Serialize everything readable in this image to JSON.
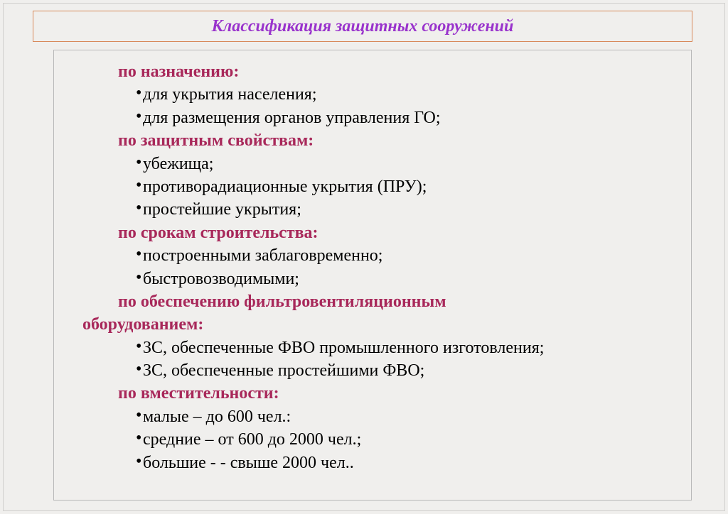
{
  "slide": {
    "title": "Классификация защитных сооружений",
    "background_color": "#f0efed",
    "title_color": "#9933cc",
    "title_border_color": "#d88a5a",
    "header_color": "#a8285a",
    "item_color": "#000000",
    "content_border_color": "#b8b8b8",
    "title_fontsize": 24,
    "header_fontsize": 24,
    "item_fontsize": 24,
    "categories": [
      {
        "header": "по назначению:",
        "items": [
          "для укрытия населения;",
          "для размещения органов управления ГО;"
        ]
      },
      {
        "header": "по защитным свойствам:",
        "items": [
          "убежища;",
          "противорадиационные укрытия (ПРУ);",
          "простейшие укрытия;"
        ]
      },
      {
        "header": "по срокам строительства:",
        "items": [
          " построенными заблаговременно;",
          " быстровозводимыми;"
        ]
      },
      {
        "header": "по обеспечению фильтровентиляционным оборудованием:",
        "wrap": true,
        "items": [
          "ЗС, обеспеченные ФВО промышленного изготовления;",
          "ЗС, обеспеченные простейшими ФВО;"
        ]
      },
      {
        "header": "по вместительности:",
        "items": [
          "малые – до 600 чел.:",
          "средние – от 600 до 2000 чел.;",
          "большие - - свыше 2000 чел.."
        ]
      }
    ]
  },
  "cat0_header": "по назначению:",
  "cat0_item0": "для укрытия населения;",
  "cat0_item1": "для размещения органов управления ГО;",
  "cat1_header": "по защитным свойствам:",
  "cat1_item0": "убежища;",
  "cat1_item1": "противорадиационные укрытия (ПРУ);",
  "cat1_item2": "простейшие укрытия;",
  "cat2_header": "по срокам строительства:",
  "cat2_item0": " построенными заблаговременно;",
  "cat2_item1": " быстровозводимыми;",
  "cat3_header_line1": "по обеспечению фильтровентиляционным",
  "cat3_header_line2": "оборудованием:",
  "cat3_item0": "ЗС, обеспеченные ФВО промышленного изготовления;",
  "cat3_item1": "ЗС, обеспеченные простейшими ФВО;",
  "cat4_header": "по вместительности:",
  "cat4_item0": "малые – до 600 чел.:",
  "cat4_item1": "средние – от 600 до 2000 чел.;",
  "cat4_item2": "большие - - свыше 2000 чел.."
}
